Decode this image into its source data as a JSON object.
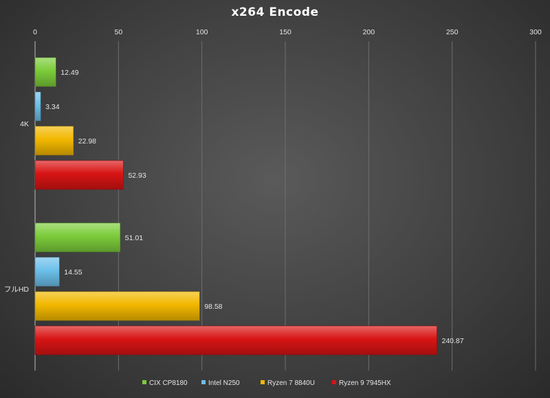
{
  "chart_data": {
    "type": "bar",
    "orientation": "horizontal",
    "title": "x264 Encode",
    "xlabel": "",
    "ylabel": "",
    "xlim": [
      0,
      300
    ],
    "x_ticks": [
      "0",
      "50",
      "100",
      "150",
      "200",
      "250",
      "300"
    ],
    "x_axis_position": "top",
    "grid": true,
    "legend_position": "bottom",
    "categories": [
      "4K",
      "フルHD"
    ],
    "series": [
      {
        "name": "CIX CP8180",
        "color": "#7ccc3a",
        "values": [
          12.49,
          51.01
        ]
      },
      {
        "name": "Intel N250",
        "color": "#6cc0ea",
        "values": [
          3.34,
          14.55
        ]
      },
      {
        "name": "Ryzen 7 8840U",
        "color": "#f2b800",
        "values": [
          22.98,
          98.58
        ]
      },
      {
        "name": "Ryzen 9 7945HX",
        "color": "#d81414",
        "values": [
          52.93,
          240.87
        ]
      }
    ]
  }
}
